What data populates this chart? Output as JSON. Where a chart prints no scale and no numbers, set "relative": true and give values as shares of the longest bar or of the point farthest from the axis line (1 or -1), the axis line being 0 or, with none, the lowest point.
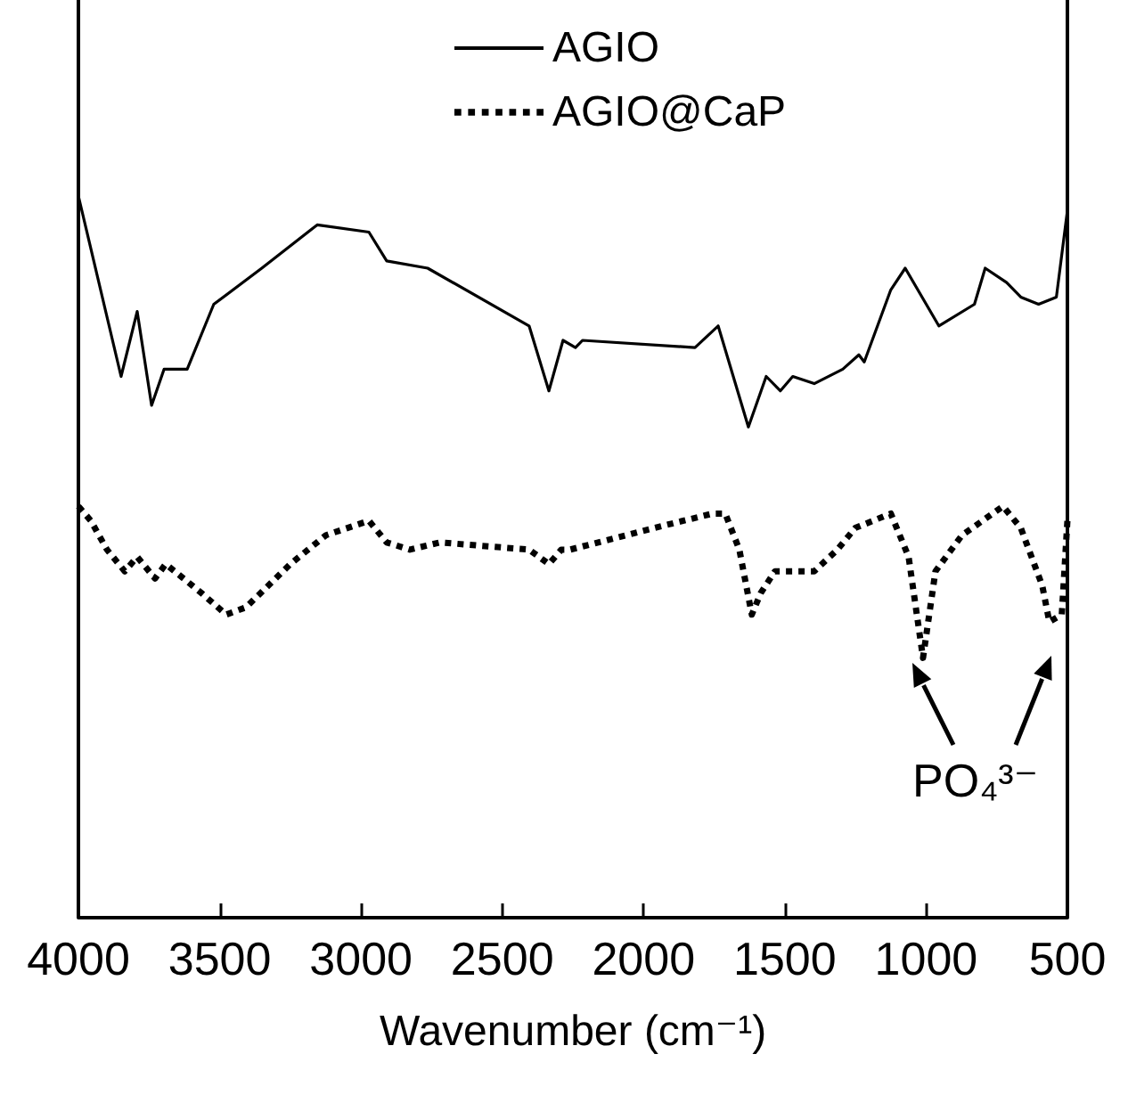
{
  "chart_data": {
    "type": "line",
    "relative": true,
    "xlabel": "Wavenumber (cm⁻¹)",
    "xlim": [
      4000,
      500
    ],
    "xticks": [
      4000,
      3500,
      3000,
      2500,
      2000,
      1500,
      1000,
      500
    ],
    "legend": "top",
    "marker": "none",
    "grid": false,
    "annotations": [
      "PO₄³⁻"
    ],
    "series": [
      {
        "name": "AGIO",
        "color": "#000000",
        "line_style": "solid",
        "x": [
          4000,
          3849,
          3792,
          3741,
          3697,
          3615,
          3521,
          3351,
          3155,
          2972,
          2909,
          2764,
          2405,
          2335,
          2285,
          2241,
          2216,
          1818,
          1736,
          1629,
          1566,
          1516,
          1472,
          1396,
          1295,
          1238,
          1219,
          1125,
          1074,
          955,
          829,
          791,
          715,
          665,
          602,
          539,
          500
        ],
        "values": [
          1.0,
          0.75,
          0.84,
          0.71,
          0.76,
          0.76,
          0.85,
          0.9,
          0.96,
          0.95,
          0.91,
          0.9,
          0.82,
          0.73,
          0.8,
          0.79,
          0.8,
          0.79,
          0.82,
          0.68,
          0.75,
          0.73,
          0.75,
          0.74,
          0.76,
          0.78,
          0.77,
          0.87,
          0.9,
          0.82,
          0.85,
          0.9,
          0.88,
          0.86,
          0.85,
          0.86,
          0.98
        ]
      },
      {
        "name": "AGIO@CaP",
        "color": "#000000",
        "line_style": "dotted",
        "x": [
          4000,
          3956,
          3899,
          3836,
          3792,
          3729,
          3691,
          3565,
          3477,
          3407,
          3250,
          3124,
          2972,
          2909,
          2827,
          2720,
          2405,
          2335,
          2291,
          2260,
          1963,
          1755,
          1711,
          1661,
          1617,
          1585,
          1535,
          1484,
          1396,
          1314,
          1251,
          1125,
          1062,
          1011,
          967,
          873,
          728,
          665,
          589,
          564,
          520,
          500
        ],
        "values": [
          0.57,
          0.55,
          0.51,
          0.48,
          0.5,
          0.47,
          0.49,
          0.45,
          0.42,
          0.43,
          0.49,
          0.53,
          0.55,
          0.52,
          0.51,
          0.52,
          0.51,
          0.49,
          0.51,
          0.51,
          0.54,
          0.56,
          0.56,
          0.51,
          0.42,
          0.45,
          0.48,
          0.48,
          0.48,
          0.51,
          0.54,
          0.56,
          0.5,
          0.36,
          0.48,
          0.53,
          0.57,
          0.54,
          0.46,
          0.41,
          0.42,
          0.55
        ]
      }
    ]
  }
}
